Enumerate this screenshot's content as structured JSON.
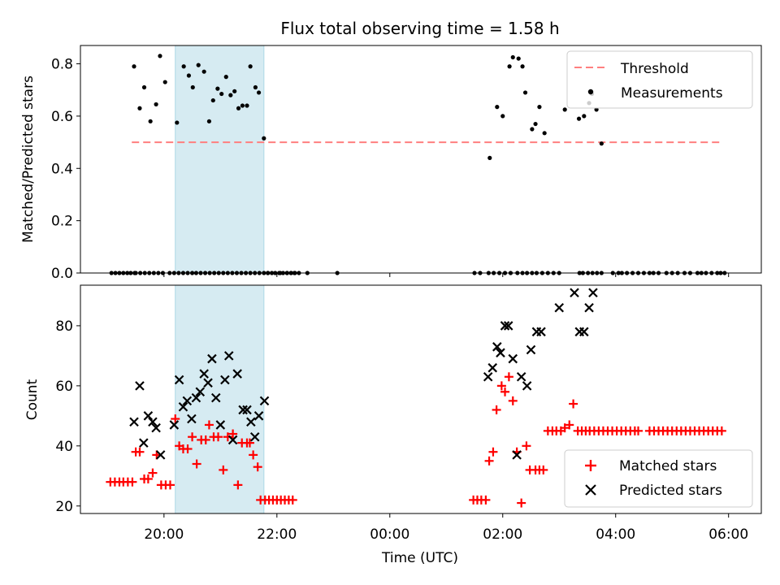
{
  "figure": {
    "title": "Flux total observing time = 1.58 h",
    "xlabel": "Time (UTC)",
    "xticks": [
      "20:00",
      "22:00",
      "00:00",
      "02:00",
      "04:00",
      "06:00"
    ]
  },
  "chart_data": [
    {
      "type": "scatter",
      "title": "Flux total observing time = 1.58 h",
      "xlabel": "Time (UTC)",
      "ylabel": "Matched/Predicted stars",
      "x_unit": "hours since 19:00 UTC",
      "xlim": [
        18.52,
        30.58
      ],
      "ylim": [
        0.0,
        0.87
      ],
      "yticks": [
        "0.0",
        "0.2",
        "0.4",
        "0.6",
        "0.8"
      ],
      "highlight_span": [
        20.2,
        21.77
      ],
      "legend": {
        "location": "top-right",
        "entries": [
          "Threshold",
          "Measurements"
        ]
      },
      "threshold": {
        "name": "Threshold",
        "y": 0.5,
        "x_start": 19.43,
        "x_end": 29.85
      },
      "measurements": {
        "name": "Measurements",
        "x": [
          19.07,
          19.14,
          19.21,
          19.28,
          19.35,
          19.41,
          19.48,
          19.5,
          19.58,
          19.66,
          19.74,
          19.82,
          19.9,
          19.98,
          20.1,
          20.18,
          20.26,
          20.34,
          20.42,
          20.5,
          20.57,
          20.65,
          20.73,
          20.81,
          20.89,
          20.97,
          21.05,
          21.13,
          21.21,
          21.29,
          21.37,
          21.45,
          21.53,
          21.61,
          21.69,
          21.77,
          21.84,
          21.91,
          21.97,
          22.04,
          22.11,
          22.18,
          22.25,
          22.32,
          21.84,
          22.06,
          22.18,
          22.25,
          22.31,
          22.39,
          22.54,
          23.07,
          25.5,
          25.6,
          25.75,
          25.84,
          25.94,
          26.04,
          26.14,
          26.26,
          26.35,
          26.43,
          26.52,
          26.6,
          26.7,
          26.8,
          27.0,
          27.36,
          27.42,
          27.51,
          27.59,
          27.67,
          27.75,
          27.95,
          28.05,
          28.11,
          28.2,
          28.3,
          28.4,
          28.5,
          28.6,
          28.67,
          28.76,
          28.9,
          29.0,
          29.1,
          29.22,
          29.32,
          29.45,
          29.52,
          29.6,
          29.7,
          29.8,
          29.86,
          29.93
        ],
        "y": [
          0.0,
          0.0,
          0.0,
          0.0,
          0.0,
          0.0,
          0.0,
          0.0,
          0.0,
          0.0,
          0.0,
          0.0,
          0.0,
          0.0,
          0.0,
          0.0,
          0.0,
          0.0,
          0.0,
          0.0,
          0.0,
          0.0,
          0.0,
          0.0,
          0.0,
          0.0,
          0.0,
          0.0,
          0.0,
          0.0,
          0.0,
          0.0,
          0.0,
          0.0,
          0.0,
          0.0,
          0.0,
          0.0,
          0.0,
          0.0,
          0.0,
          0.0,
          0.0,
          0.0,
          0.0,
          0.0,
          0.0,
          0.0,
          0.0,
          0.0,
          0.0,
          0.0,
          0.0,
          0.0,
          0.0,
          0.0,
          0.0,
          0.0,
          0.0,
          0.0,
          0.0,
          0.0,
          0.0,
          0.0,
          0.0,
          0.0,
          0.0,
          0.0,
          0.0,
          0.0,
          0.0,
          0.0,
          0.0,
          0.0,
          0.0,
          0.0,
          0.0,
          0.0,
          0.0,
          0.0,
          0.0,
          0.0,
          0.0,
          0.0,
          0.0,
          0.0,
          0.0,
          0.0,
          0.0,
          0.0,
          0.0,
          0.0,
          0.0,
          0.0,
          0.0
        ],
        "x_nonzero": [
          19.47,
          19.57,
          19.65,
          19.76,
          19.86,
          19.93,
          20.02,
          20.23,
          20.35,
          20.44,
          20.51,
          20.61,
          20.71,
          20.8,
          20.87,
          20.95,
          21.02,
          21.1,
          21.18,
          21.25,
          21.32,
          21.39,
          21.47,
          21.53,
          21.62,
          21.68,
          21.77,
          25.77,
          25.9,
          26.0,
          26.12,
          26.18,
          26.28,
          26.35,
          26.4,
          26.52,
          26.58,
          26.65,
          26.74,
          26.9,
          27.1,
          27.35,
          27.44,
          27.53,
          27.58,
          27.66,
          27.75
        ],
        "y_nonzero": [
          0.79,
          0.63,
          0.71,
          0.58,
          0.645,
          0.83,
          0.73,
          0.575,
          0.79,
          0.755,
          0.71,
          0.795,
          0.77,
          0.58,
          0.66,
          0.705,
          0.685,
          0.75,
          0.68,
          0.695,
          0.63,
          0.64,
          0.64,
          0.79,
          0.71,
          0.69,
          0.515,
          0.44,
          0.635,
          0.6,
          0.79,
          0.825,
          0.82,
          0.79,
          0.69,
          0.55,
          0.57,
          0.635,
          0.535,
          0.0,
          0.625,
          0.59,
          0.6,
          0.65,
          0.685,
          0.625,
          0.495
        ]
      }
    },
    {
      "type": "scatter",
      "xlabel": "Time (UTC)",
      "ylabel": "Count",
      "x_unit": "hours since 19:00 UTC",
      "xlim": [
        18.52,
        30.58
      ],
      "ylim": [
        17.5,
        93.5
      ],
      "yticks": [
        "20",
        "40",
        "60",
        "80"
      ],
      "highlight_span": [
        20.2,
        21.77
      ],
      "legend": {
        "location": "bottom-right",
        "entries": [
          "Matched stars",
          "Predicted stars"
        ]
      },
      "series": [
        {
          "name": "Matched stars",
          "marker": "plus",
          "color": "#ff0000",
          "x": [
            19.05,
            19.13,
            19.21,
            19.28,
            19.36,
            19.44,
            19.5,
            19.57,
            19.65,
            19.72,
            19.8,
            19.87,
            19.95,
            20.03,
            20.11,
            20.2,
            20.27,
            20.34,
            20.42,
            20.5,
            20.58,
            20.66,
            20.74,
            20.8,
            20.88,
            20.96,
            21.05,
            21.13,
            21.22,
            21.31,
            21.38,
            21.47,
            21.52,
            21.58,
            21.66,
            21.71,
            21.79,
            21.86,
            21.93,
            22.0,
            22.07,
            22.14,
            22.21,
            22.28,
            25.48,
            25.55,
            25.62,
            25.7,
            25.76,
            25.83,
            25.89,
            25.98,
            26.04,
            26.11,
            26.18,
            26.25,
            26.33,
            26.42,
            26.48,
            26.58,
            26.65,
            26.72,
            26.8,
            26.88,
            26.95,
            27.03,
            27.1,
            27.18,
            27.25,
            27.33,
            27.4,
            27.47,
            27.54,
            27.62,
            27.7,
            27.78,
            27.86,
            27.94,
            28.02,
            28.1,
            28.18,
            28.26,
            28.34,
            28.4,
            28.6,
            28.68,
            28.76,
            28.84,
            28.92,
            29.0,
            29.08,
            29.16,
            29.24,
            29.32,
            29.4,
            29.48,
            29.56,
            29.64,
            29.72,
            29.8,
            29.88
          ],
          "y": [
            28,
            28,
            28,
            28,
            28,
            28,
            38,
            38,
            29,
            29,
            31,
            37,
            27,
            27,
            27,
            49,
            40,
            39,
            39,
            43,
            34,
            42,
            42,
            47,
            43,
            43,
            32,
            43,
            44,
            27,
            41,
            41,
            41,
            37,
            33,
            22,
            22,
            22,
            22,
            22,
            22,
            22,
            22,
            22,
            22,
            22,
            22,
            22,
            35,
            38,
            52,
            60,
            58,
            63,
            55,
            38,
            21,
            40,
            32,
            32,
            32,
            32,
            45,
            45,
            45,
            45,
            46,
            47,
            54,
            45,
            45,
            45,
            45,
            45,
            45,
            45,
            45,
            45,
            45,
            45,
            45,
            45,
            45,
            45,
            45,
            45,
            45,
            45,
            45,
            45,
            45,
            45,
            45,
            45,
            45,
            45,
            45,
            45,
            45,
            45,
            45
          ]
        },
        {
          "name": "Predicted stars",
          "marker": "x",
          "color": "#000000",
          "x": [
            19.47,
            19.57,
            19.64,
            19.72,
            19.8,
            19.86,
            19.94,
            20.18,
            20.27,
            20.34,
            20.41,
            20.49,
            20.57,
            20.64,
            20.71,
            20.78,
            20.85,
            20.92,
            21.0,
            21.08,
            21.15,
            21.22,
            21.3,
            21.4,
            21.47,
            21.54,
            21.61,
            21.68,
            21.78,
            25.74,
            25.82,
            25.9,
            25.96,
            26.04,
            26.1,
            26.18,
            26.25,
            26.33,
            26.43,
            26.5,
            26.6,
            26.68,
            27.0,
            27.27,
            27.36,
            27.44,
            27.53,
            27.6
          ],
          "y": [
            48,
            60,
            41,
            50,
            48,
            46,
            37,
            47,
            62,
            53,
            55,
            49,
            56,
            58,
            64,
            61,
            69,
            56,
            47,
            62,
            70,
            42,
            64,
            52,
            52,
            48,
            43,
            50,
            55,
            63,
            66,
            73,
            71,
            80,
            80,
            69,
            37,
            63,
            60,
            72,
            78,
            78,
            86,
            91,
            78,
            78,
            86,
            91
          ]
        }
      ]
    }
  ]
}
